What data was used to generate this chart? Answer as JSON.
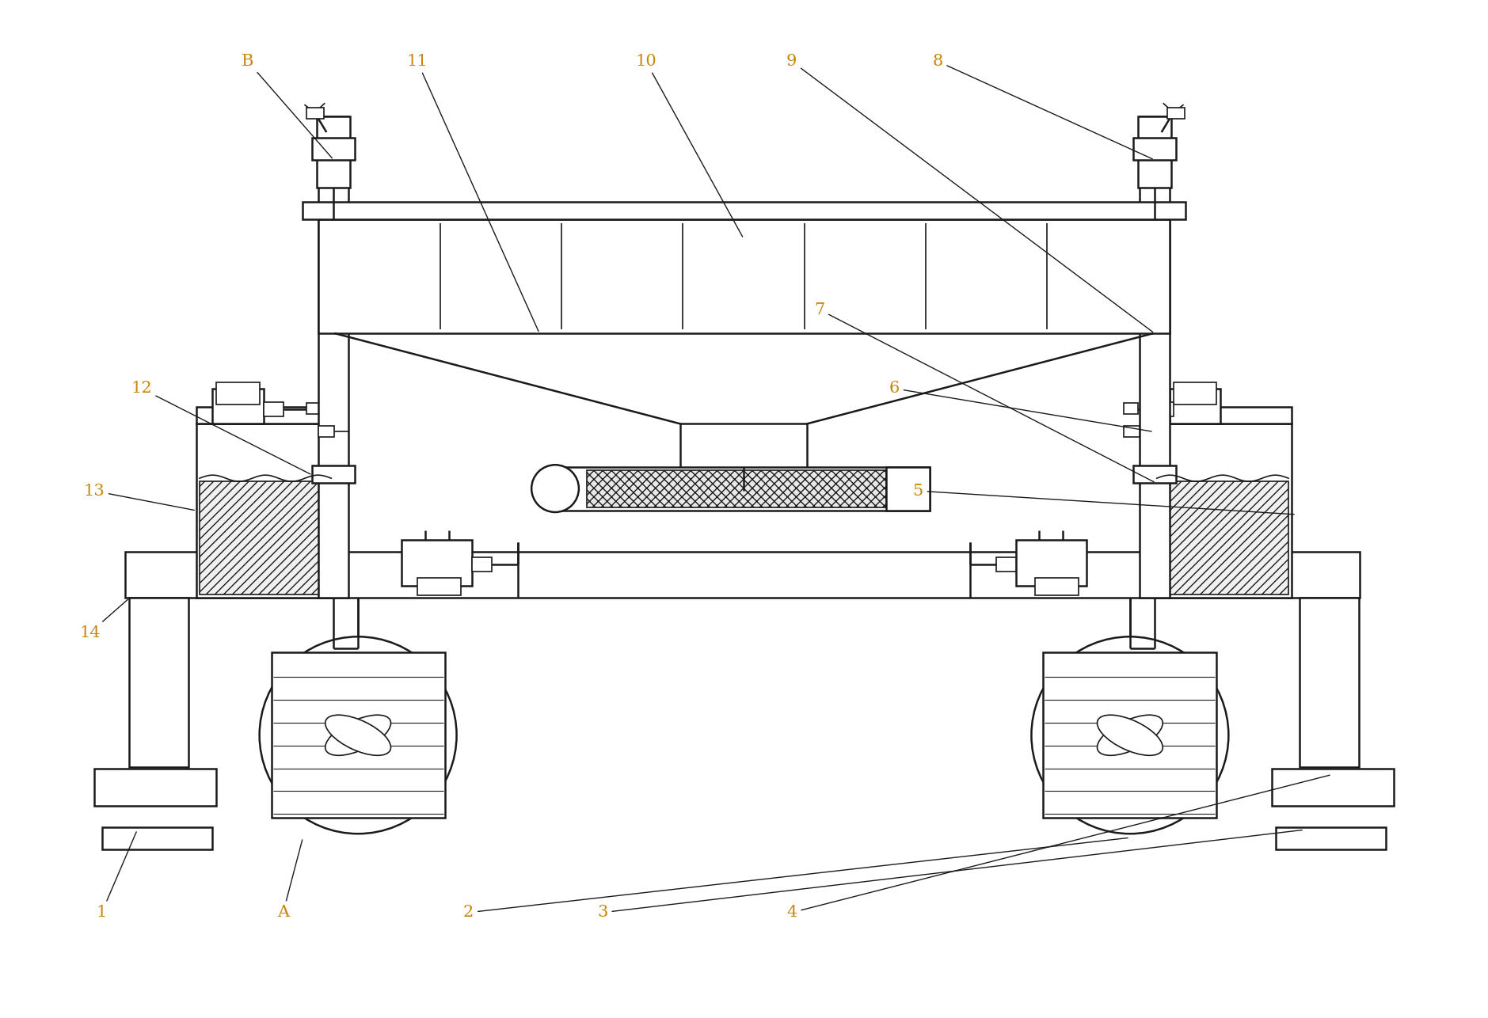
{
  "background_color": "#ffffff",
  "line_color": "#1a1a1a",
  "lw": 1.2,
  "lw2": 1.8,
  "lw3": 2.2,
  "label_color": "#c8860a",
  "label_fontsize": 15,
  "figsize": [
    18.79,
    12.86
  ],
  "dpi": 100,
  "xlim": [
    0,
    1879
  ],
  "ylim": [
    0,
    1286
  ]
}
